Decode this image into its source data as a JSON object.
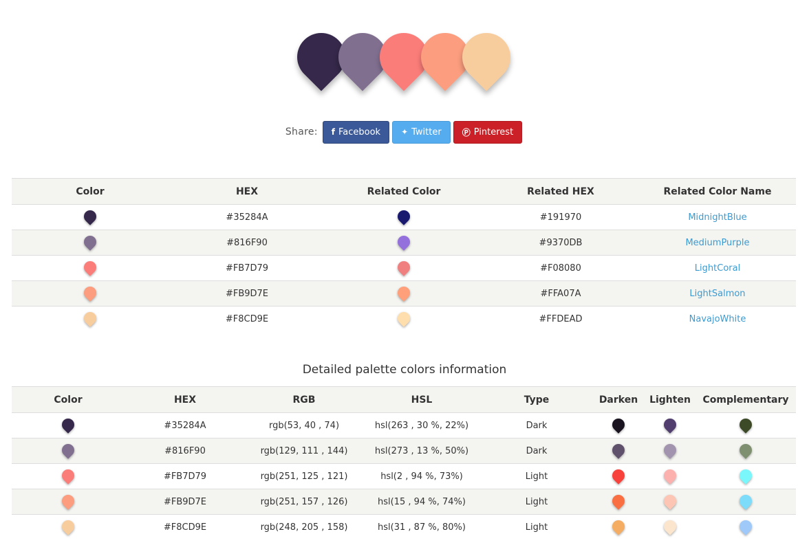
{
  "palette": [
    "#35284A",
    "#816F90",
    "#FB7D79",
    "#FB9D7E",
    "#F8CD9E"
  ],
  "share": {
    "label": "Share:",
    "buttons": [
      {
        "label": "Facebook",
        "icon": "facebook-icon",
        "glyph": "f",
        "color": "#3b5998"
      },
      {
        "label": "Twitter",
        "icon": "twitter-icon",
        "glyph": "✦",
        "color": "#55acee"
      },
      {
        "label": "Pinterest",
        "icon": "pinterest-icon",
        "glyph": "Ⓟ",
        "color": "#cb2027"
      }
    ]
  },
  "related": {
    "headers": [
      "Color",
      "HEX",
      "Related Color",
      "Related HEX",
      "Related Color Name"
    ],
    "rows": [
      {
        "hex": "#35284A",
        "related_hex": "#191970",
        "related_name": "MidnightBlue"
      },
      {
        "hex": "#816F90",
        "related_hex": "#9370DB",
        "related_name": "MediumPurple"
      },
      {
        "hex": "#FB7D79",
        "related_hex": "#F08080",
        "related_name": "LightCoral"
      },
      {
        "hex": "#FB9D7E",
        "related_hex": "#FFA07A",
        "related_name": "LightSalmon"
      },
      {
        "hex": "#F8CD9E",
        "related_hex": "#FFDEAD",
        "related_name": "NavajoWhite"
      }
    ]
  },
  "details": {
    "title": "Detailed palette colors information",
    "headers": [
      "Color",
      "HEX",
      "RGB",
      "HSL",
      "Type",
      "Darken",
      "Lighten",
      "Complementary"
    ],
    "rows": [
      {
        "hex": "#35284A",
        "rgb": "rgb(53, 40 , 74)",
        "hsl": "hsl(263 , 30 %, 22%)",
        "type": "Dark",
        "darken": "#19131f",
        "lighten": "#513e6e",
        "complementary": "#3d4a28"
      },
      {
        "hex": "#816F90",
        "rgb": "rgb(129, 111 , 144)",
        "hsl": "hsl(273 , 13 %, 50%)",
        "type": "Dark",
        "darken": "#5f516b",
        "lighten": "#a293ae",
        "complementary": "#7e9070"
      },
      {
        "hex": "#FB7D79",
        "rgb": "rgb(251, 125 , 121)",
        "hsl": "hsl(2 , 94 %, 73%)",
        "type": "Light",
        "darken": "#f9413b",
        "lighten": "#fdb1ae",
        "complementary": "#79f7fb"
      },
      {
        "hex": "#FB9D7E",
        "rgb": "rgb(251, 157 , 126)",
        "hsl": "hsl(15 , 94 %, 74%)",
        "type": "Light",
        "darken": "#f96f42",
        "lighten": "#fdc6b4",
        "complementary": "#7edcfb"
      },
      {
        "hex": "#F8CD9E",
        "rgb": "rgb(248, 205 , 158)",
        "hsl": "hsl(31 , 87 %, 80%)",
        "type": "Light",
        "darken": "#f4ad63",
        "lighten": "#fbe5cd",
        "complementary": "#9ec9f8"
      }
    ]
  }
}
